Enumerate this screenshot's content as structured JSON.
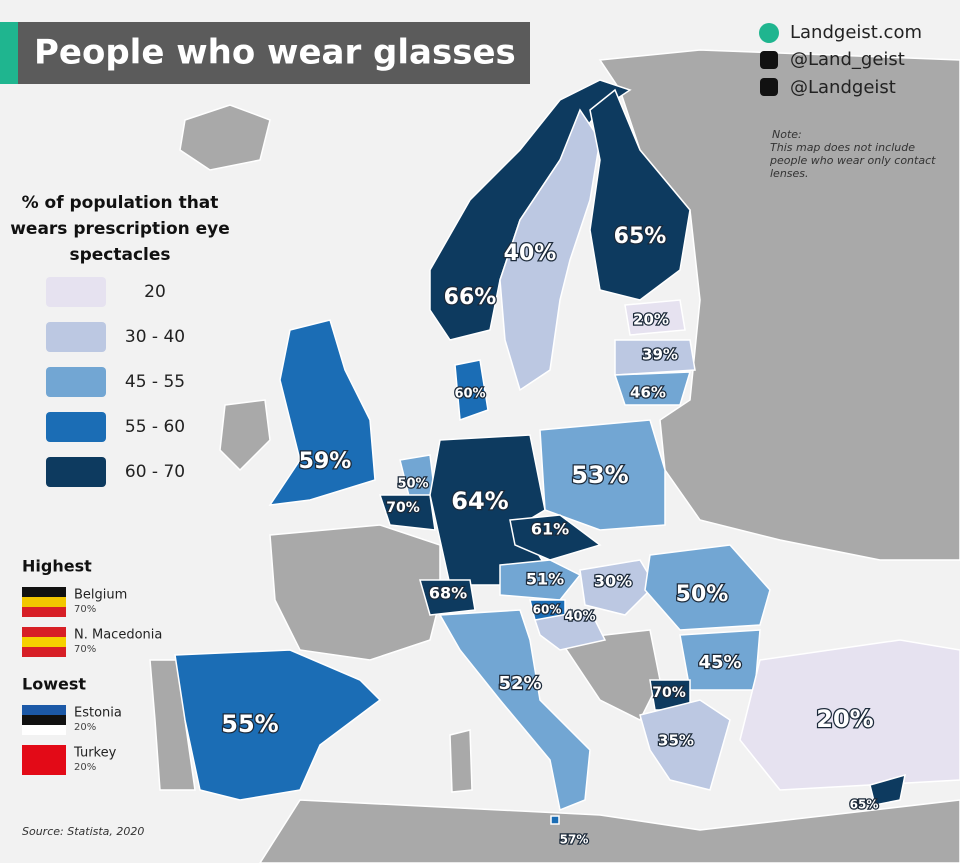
{
  "header": {
    "title": "People who wear glasses"
  },
  "social": [
    "Landgeist.com",
    "@Land_geist",
    "@Landgeist"
  ],
  "note": {
    "title": "Note:",
    "text": "This map does not include people who wear only contact lenses."
  },
  "legend": {
    "title": "% of population that wears prescription eye spectacles",
    "items": [
      {
        "label": "20",
        "color": "#e6e2f0"
      },
      {
        "label": "30 - 40",
        "color": "#bcc8e2"
      },
      {
        "label": "45 - 55",
        "color": "#72a6d3"
      },
      {
        "label": "55 - 60",
        "color": "#1b6db5"
      },
      {
        "label": "60 - 70",
        "color": "#0d3a5f"
      }
    ]
  },
  "highest": {
    "title": "Highest",
    "items": [
      {
        "country": "Belgium",
        "value": "70%"
      },
      {
        "country": "N. Macedonia",
        "value": "70%"
      }
    ]
  },
  "lowest": {
    "title": "Lowest",
    "items": [
      {
        "country": "Estonia",
        "value": "20%"
      },
      {
        "country": "Turkey",
        "value": "20%"
      }
    ]
  },
  "source": "Source: Statista, 2020",
  "regions": [
    {
      "label": "66%",
      "color": "#0d3a5f"
    },
    {
      "label": "40%",
      "color": "#bcc8e2"
    },
    {
      "label": "65%",
      "color": "#0d3a5f"
    },
    {
      "label": "20%",
      "color": "#e6e2f0"
    },
    {
      "label": "39%",
      "color": "#bcc8e2"
    },
    {
      "label": "46%",
      "color": "#72a6d3"
    },
    {
      "label": "60%",
      "color": "#1b6db5"
    },
    {
      "label": "59%",
      "color": "#1b6db5"
    },
    {
      "label": "50%",
      "color": "#72a6d3"
    },
    {
      "label": "70%",
      "color": "#0d3a5f"
    },
    {
      "label": "64%",
      "color": "#0d3a5f"
    },
    {
      "label": "53%",
      "color": "#72a6d3"
    },
    {
      "label": "61%",
      "color": "#0d3a5f"
    },
    {
      "label": "51%",
      "color": "#72a6d3"
    },
    {
      "label": "68%",
      "color": "#0d3a5f"
    },
    {
      "label": "30%",
      "color": "#bcc8e2"
    },
    {
      "label": "60%",
      "color": "#1b6db5"
    },
    {
      "label": "40%",
      "color": "#bcc8e2"
    },
    {
      "label": "50%",
      "color": "#72a6d3"
    },
    {
      "label": "45%",
      "color": "#72a6d3"
    },
    {
      "label": "70%",
      "color": "#0d3a5f"
    },
    {
      "label": "35%",
      "color": "#bcc8e2"
    },
    {
      "label": "52%",
      "color": "#72a6d3"
    },
    {
      "label": "55%",
      "color": "#1b6db5"
    },
    {
      "label": "20%",
      "color": "#e6e2f0"
    },
    {
      "label": "65%",
      "color": "#0d3a5f"
    },
    {
      "label": "57%",
      "color": "#1b6db5"
    }
  ]
}
